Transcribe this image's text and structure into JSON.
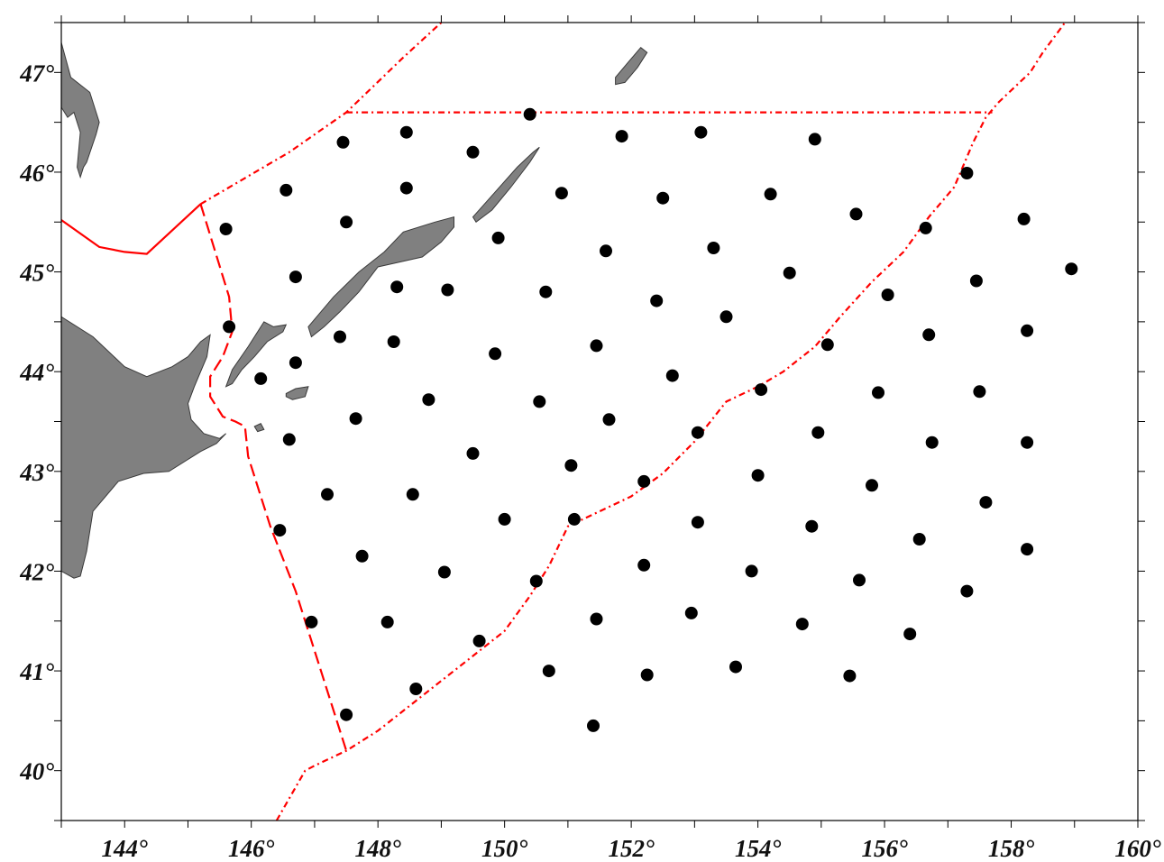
{
  "map": {
    "lon_range": [
      143,
      160
    ],
    "lat_range": [
      39.5,
      47.5
    ],
    "lon_labels": [
      {
        "value": 144,
        "text": "144°"
      },
      {
        "value": 146,
        "text": "146°"
      },
      {
        "value": 148,
        "text": "148°"
      },
      {
        "value": 150,
        "text": "150°"
      },
      {
        "value": 152,
        "text": "152°"
      },
      {
        "value": 154,
        "text": "154°"
      },
      {
        "value": 156,
        "text": "156°"
      },
      {
        "value": 158,
        "text": "158°"
      },
      {
        "value": 160,
        "text": "160°"
      }
    ],
    "lat_labels": [
      {
        "value": 47,
        "text": "47°"
      },
      {
        "value": 46,
        "text": "46°"
      },
      {
        "value": 45,
        "text": "45°"
      },
      {
        "value": 44,
        "text": "44°"
      },
      {
        "value": 43,
        "text": "43°"
      },
      {
        "value": 42,
        "text": "42°"
      },
      {
        "value": 41,
        "text": "41°"
      },
      {
        "value": 40,
        "text": "40°"
      }
    ],
    "colors": {
      "land": "#808080",
      "land_outline": "#3a3a3a",
      "boundary": "#ff0000",
      "station": "#000000",
      "frame": "#000000"
    },
    "stations": [
      [
        150.4,
        46.58
      ],
      [
        147.45,
        46.3
      ],
      [
        148.45,
        46.4
      ],
      [
        149.5,
        46.2
      ],
      [
        151.85,
        46.36
      ],
      [
        153.1,
        46.4
      ],
      [
        154.9,
        46.33
      ],
      [
        146.55,
        45.82
      ],
      [
        148.45,
        45.84
      ],
      [
        150.9,
        45.79
      ],
      [
        152.5,
        45.74
      ],
      [
        154.2,
        45.78
      ],
      [
        157.3,
        45.99
      ],
      [
        145.6,
        45.43
      ],
      [
        147.5,
        45.5
      ],
      [
        149.9,
        45.34
      ],
      [
        151.6,
        45.21
      ],
      [
        153.3,
        45.24
      ],
      [
        155.55,
        45.58
      ],
      [
        156.65,
        45.44
      ],
      [
        158.2,
        45.53
      ],
      [
        146.7,
        44.95
      ],
      [
        148.3,
        44.85
      ],
      [
        149.1,
        44.82
      ],
      [
        150.65,
        44.8
      ],
      [
        152.4,
        44.71
      ],
      [
        154.5,
        44.99
      ],
      [
        156.05,
        44.77
      ],
      [
        157.45,
        44.91
      ],
      [
        158.95,
        45.03
      ],
      [
        145.65,
        44.45
      ],
      [
        147.4,
        44.35
      ],
      [
        148.25,
        44.3
      ],
      [
        149.85,
        44.18
      ],
      [
        151.45,
        44.26
      ],
      [
        153.5,
        44.55
      ],
      [
        155.1,
        44.27
      ],
      [
        156.7,
        44.37
      ],
      [
        158.25,
        44.41
      ],
      [
        146.15,
        43.93
      ],
      [
        146.7,
        44.09
      ],
      [
        148.8,
        43.72
      ],
      [
        150.55,
        43.7
      ],
      [
        152.65,
        43.96
      ],
      [
        154.05,
        43.82
      ],
      [
        155.9,
        43.79
      ],
      [
        157.5,
        43.8
      ],
      [
        147.65,
        43.53
      ],
      [
        151.65,
        43.52
      ],
      [
        146.6,
        43.32
      ],
      [
        149.5,
        43.18
      ],
      [
        151.05,
        43.06
      ],
      [
        153.05,
        43.39
      ],
      [
        154.95,
        43.39
      ],
      [
        156.75,
        43.29
      ],
      [
        158.25,
        43.29
      ],
      [
        147.2,
        42.77
      ],
      [
        148.55,
        42.77
      ],
      [
        152.2,
        42.9
      ],
      [
        154.0,
        42.96
      ],
      [
        155.8,
        42.86
      ],
      [
        157.6,
        42.69
      ],
      [
        146.45,
        42.41
      ],
      [
        150.0,
        42.52
      ],
      [
        151.1,
        42.52
      ],
      [
        153.05,
        42.49
      ],
      [
        154.85,
        42.45
      ],
      [
        156.55,
        42.32
      ],
      [
        147.75,
        42.15
      ],
      [
        149.05,
        41.99
      ],
      [
        150.5,
        41.9
      ],
      [
        152.2,
        42.06
      ],
      [
        153.9,
        42.0
      ],
      [
        155.6,
        41.91
      ],
      [
        157.3,
        41.8
      ],
      [
        158.25,
        42.22
      ],
      [
        146.95,
        41.49
      ],
      [
        148.15,
        41.49
      ],
      [
        149.6,
        41.3
      ],
      [
        151.45,
        41.52
      ],
      [
        152.95,
        41.58
      ],
      [
        154.7,
        41.47
      ],
      [
        156.4,
        41.37
      ],
      [
        150.7,
        41.0
      ],
      [
        152.25,
        40.96
      ],
      [
        153.65,
        41.04
      ],
      [
        155.45,
        40.95
      ],
      [
        148.6,
        40.82
      ],
      [
        147.5,
        40.56
      ],
      [
        151.4,
        40.45
      ]
    ],
    "land_polygons": [
      {
        "name": "hokkaido",
        "points": [
          [
            143,
            44.55
          ],
          [
            143.5,
            44.35
          ],
          [
            144.0,
            44.05
          ],
          [
            144.35,
            43.95
          ],
          [
            144.75,
            44.05
          ],
          [
            145.0,
            44.15
          ],
          [
            145.2,
            44.3
          ],
          [
            145.35,
            44.37
          ],
          [
            145.3,
            44.15
          ],
          [
            145.1,
            43.85
          ],
          [
            145.0,
            43.68
          ],
          [
            145.05,
            43.52
          ],
          [
            145.25,
            43.38
          ],
          [
            145.5,
            43.33
          ],
          [
            145.6,
            43.38
          ],
          [
            145.45,
            43.28
          ],
          [
            145.2,
            43.2
          ],
          [
            145.0,
            43.12
          ],
          [
            144.7,
            43.0
          ],
          [
            144.3,
            42.98
          ],
          [
            143.9,
            42.9
          ],
          [
            143.5,
            42.6
          ],
          [
            143.4,
            42.2
          ],
          [
            143.3,
            41.95
          ],
          [
            143.2,
            41.93
          ],
          [
            143,
            42.0
          ]
        ]
      },
      {
        "name": "sakhalin-tip",
        "points": [
          [
            143,
            47.3
          ],
          [
            143.15,
            46.95
          ],
          [
            143.45,
            46.8
          ],
          [
            143.6,
            46.5
          ],
          [
            143.55,
            46.38
          ],
          [
            143.4,
            46.1
          ],
          [
            143.35,
            46.05
          ],
          [
            143.3,
            45.95
          ],
          [
            143.25,
            46.05
          ],
          [
            143.3,
            46.4
          ],
          [
            143.2,
            46.6
          ],
          [
            143.1,
            46.55
          ],
          [
            143,
            46.65
          ]
        ]
      },
      {
        "name": "kunashir",
        "points": [
          [
            145.85,
            44.02
          ],
          [
            146.05,
            44.15
          ],
          [
            146.25,
            44.3
          ],
          [
            146.5,
            44.4
          ],
          [
            146.55,
            44.47
          ],
          [
            146.35,
            44.45
          ],
          [
            146.2,
            44.5
          ],
          [
            145.95,
            44.25
          ],
          [
            145.7,
            44.02
          ],
          [
            145.6,
            43.85
          ],
          [
            145.7,
            43.88
          ]
        ]
      },
      {
        "name": "shikotan",
        "points": [
          [
            146.55,
            43.78
          ],
          [
            146.7,
            43.83
          ],
          [
            146.9,
            43.85
          ],
          [
            146.85,
            43.75
          ],
          [
            146.65,
            43.72
          ],
          [
            146.55,
            43.75
          ]
        ]
      },
      {
        "name": "habomai",
        "points": [
          [
            146.05,
            43.45
          ],
          [
            146.15,
            43.48
          ],
          [
            146.2,
            43.42
          ],
          [
            146.1,
            43.4
          ]
        ]
      },
      {
        "name": "iturup",
        "points": [
          [
            146.9,
            44.45
          ],
          [
            147.3,
            44.75
          ],
          [
            147.7,
            45.0
          ],
          [
            148.1,
            45.2
          ],
          [
            148.4,
            45.4
          ],
          [
            148.9,
            45.5
          ],
          [
            149.2,
            45.55
          ],
          [
            149.2,
            45.45
          ],
          [
            149.0,
            45.3
          ],
          [
            148.7,
            45.15
          ],
          [
            148.35,
            45.1
          ],
          [
            148.0,
            45.05
          ],
          [
            147.7,
            44.8
          ],
          [
            147.4,
            44.6
          ],
          [
            147.15,
            44.45
          ],
          [
            146.95,
            44.35
          ]
        ]
      },
      {
        "name": "urup",
        "points": [
          [
            149.5,
            45.55
          ],
          [
            149.85,
            45.8
          ],
          [
            150.2,
            46.05
          ],
          [
            150.45,
            46.2
          ],
          [
            150.55,
            46.25
          ],
          [
            150.4,
            46.1
          ],
          [
            150.1,
            45.85
          ],
          [
            149.8,
            45.62
          ],
          [
            149.55,
            45.5
          ]
        ]
      },
      {
        "name": "simushir",
        "points": [
          [
            151.75,
            46.95
          ],
          [
            151.95,
            47.1
          ],
          [
            152.15,
            47.25
          ],
          [
            152.25,
            47.2
          ],
          [
            152.1,
            47.05
          ],
          [
            151.9,
            46.9
          ],
          [
            151.75,
            46.88
          ]
        ]
      }
    ],
    "boundaries": [
      {
        "name": "limit-western-land",
        "dash": "solid",
        "points": [
          [
            143,
            45.52
          ],
          [
            143.6,
            45.25
          ],
          [
            144.0,
            45.2
          ],
          [
            144.35,
            45.18
          ],
          [
            145.2,
            45.68
          ]
        ]
      },
      {
        "name": "limit-western",
        "dash": "long",
        "points": [
          [
            145.2,
            45.68
          ],
          [
            145.65,
            44.75
          ],
          [
            145.7,
            44.4
          ],
          [
            145.55,
            44.15
          ],
          [
            145.35,
            43.95
          ],
          [
            145.35,
            43.75
          ],
          [
            145.55,
            43.55
          ],
          [
            145.75,
            43.5
          ],
          [
            145.9,
            43.45
          ],
          [
            145.95,
            43.15
          ],
          [
            146.3,
            42.45
          ],
          [
            146.7,
            41.8
          ],
          [
            147.5,
            40.2
          ]
        ]
      },
      {
        "name": "limit-southern",
        "dash": "dashdot",
        "points": [
          [
            146.4,
            39.5
          ],
          [
            146.85,
            40.0
          ],
          [
            147.0,
            40.05
          ],
          [
            147.5,
            40.2
          ],
          [
            148.0,
            40.4
          ],
          [
            148.5,
            40.65
          ],
          [
            149.0,
            40.9
          ],
          [
            149.5,
            41.15
          ],
          [
            150.0,
            41.4
          ],
          [
            150.4,
            41.75
          ],
          [
            150.7,
            42.05
          ],
          [
            151.0,
            42.45
          ],
          [
            151.5,
            42.6
          ],
          [
            152.0,
            42.75
          ],
          [
            152.5,
            42.98
          ],
          [
            153.0,
            43.3
          ],
          [
            153.5,
            43.7
          ],
          [
            154.0,
            43.85
          ],
          [
            154.4,
            44.0
          ],
          [
            154.9,
            44.25
          ],
          [
            155.3,
            44.55
          ],
          [
            155.8,
            44.9
          ],
          [
            156.3,
            45.2
          ],
          [
            156.7,
            45.55
          ],
          [
            157.1,
            45.85
          ],
          [
            157.4,
            46.3
          ],
          [
            157.6,
            46.55
          ],
          [
            157.8,
            46.7
          ],
          [
            158.3,
            47.0
          ],
          [
            158.5,
            47.2
          ],
          [
            158.85,
            47.5
          ]
        ]
      },
      {
        "name": "limit-northern",
        "dash": "dashdot",
        "points": [
          [
            147.5,
            46.6
          ],
          [
            157.7,
            46.6
          ]
        ]
      },
      {
        "name": "limit-northwest",
        "dash": "dashdot",
        "points": [
          [
            145.2,
            45.68
          ],
          [
            146.6,
            46.2
          ],
          [
            147.5,
            46.6
          ],
          [
            148.4,
            47.15
          ],
          [
            149.0,
            47.5
          ]
        ]
      }
    ]
  }
}
